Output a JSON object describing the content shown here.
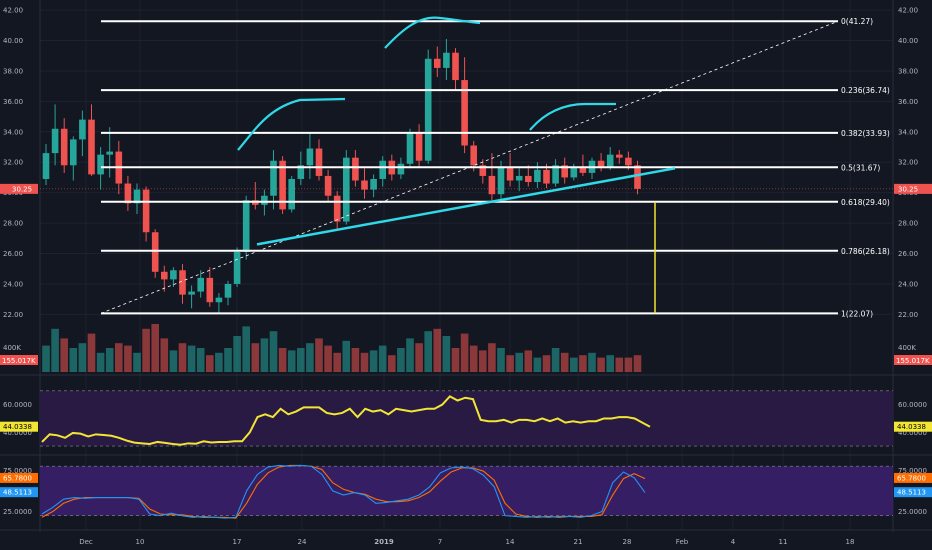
{
  "colors": {
    "background": "#131722",
    "up": "#26a69a",
    "down": "#ef5350",
    "volume_up": "#26a69a",
    "volume_down": "#ef5350",
    "fib_line": "#ffffff",
    "trend_line": "#2fd9e8",
    "rsi_line": "#f2e534",
    "rsi_band": "#2b1b47",
    "stoch_band": "#3a1f6b",
    "stoch_k": "#2196f3",
    "stoch_d": "#ff6d00",
    "projection": "#f2e534",
    "axis_text": "#b2b5be",
    "grid": "#1e2230"
  },
  "chart_data": {
    "type": "candlestick",
    "price_axis": {
      "ticks": [
        "42.00",
        "40.00",
        "38.00",
        "36.00",
        "34.00",
        "32.00",
        "30.00",
        "28.00",
        "26.00",
        "24.00",
        "22.00"
      ],
      "range": [
        21.5,
        42.4
      ]
    },
    "last_price_label": "30.25",
    "time_axis": {
      "labels": [
        "Dec",
        "10",
        "17",
        "24",
        "2019",
        "7",
        "14",
        "21",
        "28",
        "Feb",
        "4",
        "11",
        "18"
      ]
    },
    "fib_levels": [
      {
        "ratio": 0,
        "price": 41.27,
        "label": "0(41.27)"
      },
      {
        "ratio": 0.236,
        "price": 36.74,
        "label": "0.236(36.74)"
      },
      {
        "ratio": 0.382,
        "price": 33.93,
        "label": "0.382(33.93)"
      },
      {
        "ratio": 0.5,
        "price": 31.67,
        "label": "0.5(31.67)"
      },
      {
        "ratio": 0.618,
        "price": 29.4,
        "label": "0.618(29.40)"
      },
      {
        "ratio": 0.786,
        "price": 26.18,
        "label": "0.786(26.18)"
      },
      {
        "ratio": 1,
        "price": 22.07,
        "label": "1(22.07)"
      }
    ],
    "candles": [
      [
        30.9,
        33.2,
        30.5,
        32.6
      ],
      [
        32.6,
        35.8,
        31.8,
        34.2
      ],
      [
        34.2,
        34.9,
        31.3,
        31.8
      ],
      [
        31.8,
        33.7,
        30.8,
        33.5
      ],
      [
        33.5,
        35.4,
        32.4,
        34.8
      ],
      [
        34.8,
        35.8,
        31.1,
        31.2
      ],
      [
        31.2,
        33.0,
        30.2,
        32.5
      ],
      [
        32.5,
        34.3,
        31.0,
        32.7
      ],
      [
        32.7,
        33.4,
        29.9,
        30.6
      ],
      [
        30.6,
        31.1,
        28.8,
        29.3
      ],
      [
        29.3,
        30.6,
        28.6,
        30.2
      ],
      [
        30.2,
        30.4,
        26.8,
        27.4
      ],
      [
        27.4,
        27.6,
        24.4,
        24.8
      ],
      [
        24.8,
        25.2,
        23.5,
        24.3
      ],
      [
        24.3,
        25.1,
        23.8,
        24.9
      ],
      [
        24.9,
        25.3,
        22.7,
        23.3
      ],
      [
        23.3,
        23.9,
        22.4,
        23.5
      ],
      [
        23.5,
        24.9,
        23.1,
        24.4
      ],
      [
        24.4,
        25.1,
        22.5,
        22.8
      ],
      [
        22.8,
        23.4,
        22.1,
        23.1
      ],
      [
        23.1,
        24.2,
        22.6,
        24.0
      ],
      [
        24.0,
        26.4,
        23.8,
        26.1
      ],
      [
        26.1,
        29.8,
        25.6,
        29.5
      ],
      [
        29.5,
        30.7,
        28.9,
        29.2
      ],
      [
        29.2,
        30.2,
        28.5,
        29.8
      ],
      [
        29.8,
        32.8,
        28.9,
        32.1
      ],
      [
        32.1,
        32.4,
        28.6,
        28.9
      ],
      [
        28.9,
        31.1,
        28.7,
        30.9
      ],
      [
        30.9,
        32.7,
        30.5,
        31.8
      ],
      [
        31.8,
        33.9,
        30.9,
        32.9
      ],
      [
        32.9,
        33.5,
        30.8,
        31.1
      ],
      [
        31.1,
        31.5,
        29.4,
        29.8
      ],
      [
        29.8,
        30.1,
        27.6,
        28.1
      ],
      [
        28.1,
        32.8,
        27.9,
        32.3
      ],
      [
        32.3,
        32.8,
        30.4,
        30.8
      ],
      [
        30.8,
        31.6,
        29.6,
        30.2
      ],
      [
        30.2,
        31.2,
        29.7,
        30.9
      ],
      [
        30.9,
        32.4,
        30.4,
        32.1
      ],
      [
        32.1,
        32.5,
        30.8,
        31.2
      ],
      [
        31.2,
        32.3,
        30.9,
        31.9
      ],
      [
        31.9,
        34.2,
        31.6,
        33.9
      ],
      [
        33.9,
        34.5,
        31.7,
        32.1
      ],
      [
        32.1,
        39.4,
        31.9,
        38.8
      ],
      [
        38.8,
        39.6,
        37.6,
        38.2
      ],
      [
        38.2,
        40.1,
        37.4,
        39.2
      ],
      [
        39.2,
        39.5,
        36.8,
        37.4
      ],
      [
        37.4,
        38.9,
        32.6,
        33.1
      ],
      [
        33.1,
        33.4,
        31.4,
        31.8
      ],
      [
        31.8,
        32.2,
        30.6,
        31.1
      ],
      [
        31.1,
        32.6,
        29.5,
        29.9
      ],
      [
        29.9,
        32.1,
        29.6,
        31.7
      ],
      [
        31.7,
        32.6,
        30.4,
        30.8
      ],
      [
        30.8,
        31.6,
        30.1,
        31.1
      ],
      [
        31.1,
        31.8,
        30.4,
        30.7
      ],
      [
        30.7,
        32.0,
        30.3,
        31.5
      ],
      [
        31.5,
        31.9,
        30.3,
        30.6
      ],
      [
        30.6,
        32.2,
        30.4,
        31.8
      ],
      [
        31.8,
        32.3,
        30.6,
        31.0
      ],
      [
        31.0,
        31.9,
        30.8,
        31.7
      ],
      [
        31.7,
        32.5,
        31.1,
        31.3
      ],
      [
        31.3,
        32.3,
        30.9,
        32.1
      ],
      [
        32.1,
        32.6,
        31.4,
        31.7
      ],
      [
        31.7,
        33.0,
        31.5,
        32.5
      ],
      [
        32.5,
        32.8,
        31.9,
        32.3
      ],
      [
        32.3,
        32.7,
        31.5,
        31.8
      ],
      [
        31.8,
        32.1,
        29.9,
        30.25
      ]
    ],
    "volume": [
      0.55,
      0.9,
      0.7,
      0.5,
      0.6,
      0.8,
      0.4,
      0.5,
      0.6,
      0.55,
      0.4,
      0.9,
      1.0,
      0.7,
      0.45,
      0.6,
      0.55,
      0.5,
      0.35,
      0.4,
      0.5,
      0.75,
      0.95,
      0.6,
      0.7,
      0.85,
      0.5,
      0.45,
      0.5,
      0.6,
      0.7,
      0.55,
      0.4,
      0.65,
      0.5,
      0.4,
      0.45,
      0.55,
      0.35,
      0.5,
      0.7,
      0.6,
      0.85,
      0.9,
      0.75,
      0.5,
      0.8,
      0.55,
      0.45,
      0.6,
      0.5,
      0.35,
      0.4,
      0.45,
      0.3,
      0.35,
      0.5,
      0.4,
      0.3,
      0.35,
      0.4,
      0.3,
      0.35,
      0.3,
      0.3,
      0.35
    ],
    "volume_axis": {
      "tick": "400K",
      "last": "155.017K"
    },
    "rsi": {
      "ticks": [
        "60.0000",
        "40.0000"
      ],
      "last": "44.0338",
      "range": [
        25,
        80
      ],
      "values": [
        33,
        38.5,
        37.8,
        36,
        39.5,
        39,
        37,
        38.5,
        38,
        37.5,
        36,
        34,
        32.5,
        32,
        31.5,
        33,
        32.3,
        31.5,
        31,
        32,
        31.7,
        33.5,
        32.6,
        33,
        33,
        33.5,
        33.5,
        40,
        51,
        53,
        51,
        57,
        53,
        55,
        58,
        58,
        58,
        54,
        53,
        54,
        57,
        51,
        57,
        55,
        56,
        53,
        57,
        56,
        55,
        56,
        57,
        57,
        60,
        66,
        63,
        65,
        64,
        49,
        48,
        48,
        49,
        47,
        49,
        49,
        48,
        50,
        48,
        50,
        47,
        48,
        47,
        48,
        48,
        50,
        50,
        51,
        51,
        50,
        47,
        44
      ]
    },
    "stoch": {
      "ticks": [
        "75.0000",
        "25.0000"
      ],
      "k_last": "48.5113",
      "d_last": "65.7800",
      "range": [
        5,
        90
      ],
      "k": [
        22,
        30,
        40,
        42,
        41,
        42,
        42,
        42,
        42,
        40,
        22,
        20,
        23,
        20,
        18,
        19,
        18,
        17,
        18,
        50,
        70,
        79,
        81,
        80,
        81,
        80,
        70,
        50,
        45,
        48,
        45,
        35,
        36,
        38,
        40,
        45,
        55,
        72,
        78,
        79,
        77,
        69,
        55,
        20,
        19,
        18,
        19,
        18,
        19,
        19,
        18,
        20,
        25,
        60,
        73,
        66,
        48
      ],
      "d": [
        18,
        25,
        35,
        40,
        42,
        42,
        42,
        42,
        42,
        41,
        28,
        22,
        21,
        21,
        19,
        18,
        18,
        18,
        17,
        35,
        58,
        72,
        79,
        81,
        81,
        80,
        76,
        60,
        52,
        48,
        46,
        40,
        37,
        37,
        38,
        42,
        49,
        62,
        73,
        78,
        78,
        74,
        63,
        35,
        22,
        19,
        18,
        19,
        18,
        19,
        19,
        19,
        21,
        45,
        65,
        71,
        65
      ]
    }
  }
}
